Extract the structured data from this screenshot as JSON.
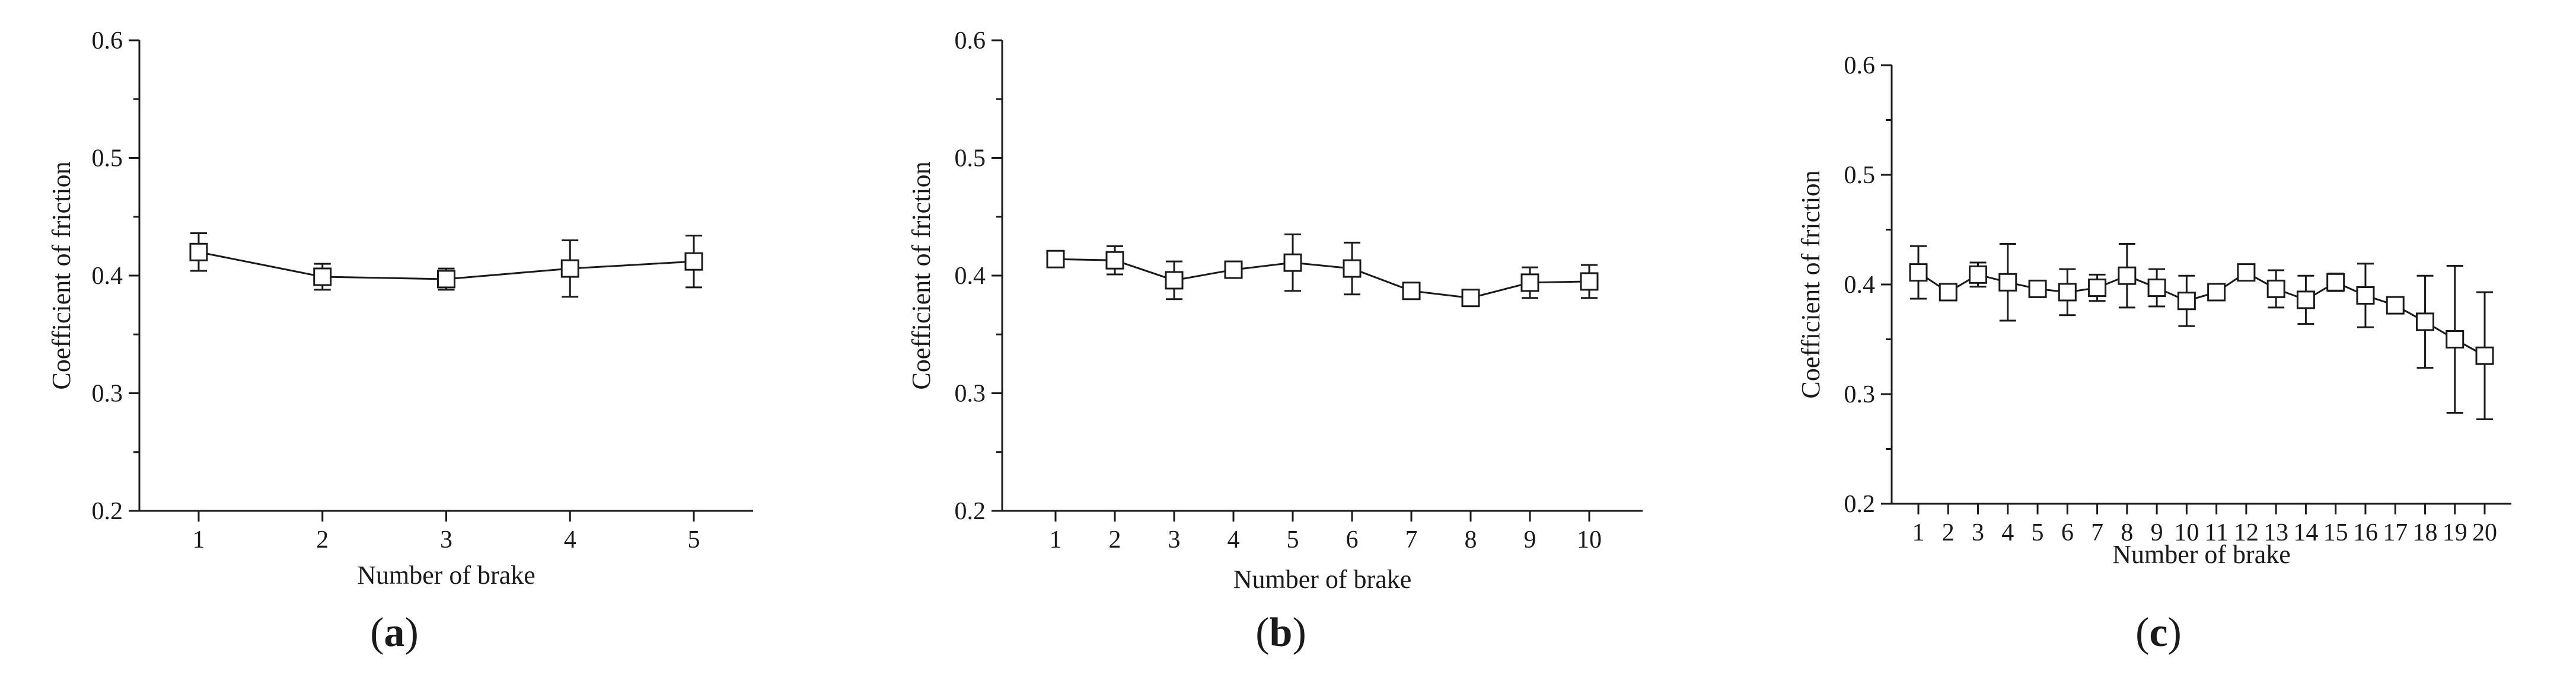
{
  "chart_data": [
    {
      "type": "line",
      "panel_label": "(a)",
      "caption_letter": "a",
      "xlabel": "Number of brake",
      "ylabel": "Coefficient of friction",
      "ylim": [
        0.2,
        0.6
      ],
      "yticks": [
        "0.2",
        "0.3",
        "0.4",
        "0.5",
        "0.6"
      ],
      "x": [
        1,
        2,
        3,
        4,
        5
      ],
      "xticks": [
        "1",
        "2",
        "3",
        "4",
        "5"
      ],
      "series": [
        {
          "values": [
            0.42,
            0.399,
            0.397,
            0.406,
            0.412
          ],
          "err_high": [
            0.436,
            0.41,
            0.406,
            0.43,
            0.434
          ],
          "err_low": [
            0.404,
            0.388,
            0.388,
            0.382,
            0.39
          ],
          "marker": "open-square"
        }
      ],
      "grid": false
    },
    {
      "type": "line",
      "panel_label": "(b)",
      "caption_letter": "b",
      "xlabel": "Number of brake",
      "ylabel": "Coefficient of friction",
      "ylim": [
        0.2,
        0.6
      ],
      "yticks": [
        "0.2",
        "0.3",
        "0.4",
        "0.5",
        "0.6"
      ],
      "x": [
        1,
        2,
        3,
        4,
        5,
        6,
        7,
        8,
        9,
        10
      ],
      "xticks": [
        "1",
        "2",
        "3",
        "4",
        "5",
        "6",
        "7",
        "8",
        "9",
        "10"
      ],
      "series": [
        {
          "values": [
            0.414,
            0.413,
            0.396,
            0.405,
            0.411,
            0.406,
            0.387,
            0.381,
            0.394,
            0.395
          ],
          "err_high": [
            0.417,
            0.425,
            0.412,
            0.41,
            0.435,
            0.428,
            0.391,
            0.384,
            0.407,
            0.409
          ],
          "err_low": [
            0.411,
            0.401,
            0.38,
            0.4,
            0.387,
            0.384,
            0.383,
            0.378,
            0.381,
            0.381
          ],
          "marker": "open-square"
        }
      ],
      "grid": false
    },
    {
      "type": "line",
      "panel_label": "(c)",
      "caption_letter": "c",
      "xlabel": "Number of brake",
      "ylabel": "Coefficient of friction",
      "ylim": [
        0.2,
        0.6
      ],
      "yticks": [
        "0.2",
        "0.3",
        "0.4",
        "0.5",
        "0.6"
      ],
      "x": [
        1,
        2,
        3,
        4,
        5,
        6,
        7,
        8,
        9,
        10,
        11,
        12,
        13,
        14,
        15,
        16,
        17,
        18,
        19,
        20
      ],
      "xticks": [
        "1",
        "2",
        "3",
        "4",
        "5",
        "6",
        "7",
        "8",
        "9",
        "10",
        "11",
        "12",
        "13",
        "14",
        "15",
        "16",
        "17",
        "18",
        "19",
        "20"
      ],
      "series": [
        {
          "values": [
            0.411,
            0.393,
            0.409,
            0.402,
            0.396,
            0.393,
            0.397,
            0.408,
            0.397,
            0.385,
            0.393,
            0.411,
            0.396,
            0.386,
            0.402,
            0.39,
            0.381,
            0.366,
            0.35,
            0.335
          ],
          "err_high": [
            0.435,
            0.399,
            0.42,
            0.437,
            0.4,
            0.414,
            0.409,
            0.437,
            0.414,
            0.408,
            0.397,
            0.414,
            0.413,
            0.408,
            0.41,
            0.419,
            0.383,
            0.408,
            0.417,
            0.393
          ],
          "err_low": [
            0.387,
            0.387,
            0.398,
            0.367,
            0.392,
            0.372,
            0.385,
            0.379,
            0.38,
            0.362,
            0.389,
            0.408,
            0.379,
            0.364,
            0.394,
            0.361,
            0.379,
            0.324,
            0.283,
            0.277
          ],
          "marker": "open-square"
        }
      ],
      "grid": false
    }
  ]
}
